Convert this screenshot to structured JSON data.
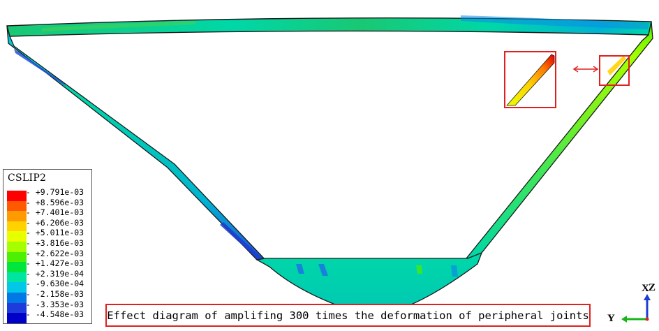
{
  "legend": {
    "title": "CSLIP2",
    "values": [
      "+9.791e-03",
      "+8.596e-03",
      "+7.401e-03",
      "+6.206e-03",
      "+5.011e-03",
      "+3.816e-03",
      "+2.622e-03",
      "+1.427e-03",
      "+2.319e-04",
      "-9.630e-04",
      "-2.158e-03",
      "-3.353e-03",
      "-4.548e-03"
    ],
    "colors": [
      "#ff0000",
      "#ff5a00",
      "#ff9a00",
      "#ffd200",
      "#e8ff00",
      "#a6ff00",
      "#4cf000",
      "#00e63c",
      "#00e6a0",
      "#00c8e6",
      "#0078e6",
      "#1e3cdc",
      "#0000c8"
    ]
  },
  "caption": "Effect diagram of amplifing 300 times the deformation of peripheral joints",
  "triad": {
    "x_label": "X",
    "z_label": "Z",
    "y_label": "Y"
  },
  "colors": {
    "model_base": "#00d7a8",
    "highlight_box": "#e02020",
    "triad_x": "#e02020",
    "triad_y": "#19b419",
    "triad_z": "#1e3ccd"
  }
}
